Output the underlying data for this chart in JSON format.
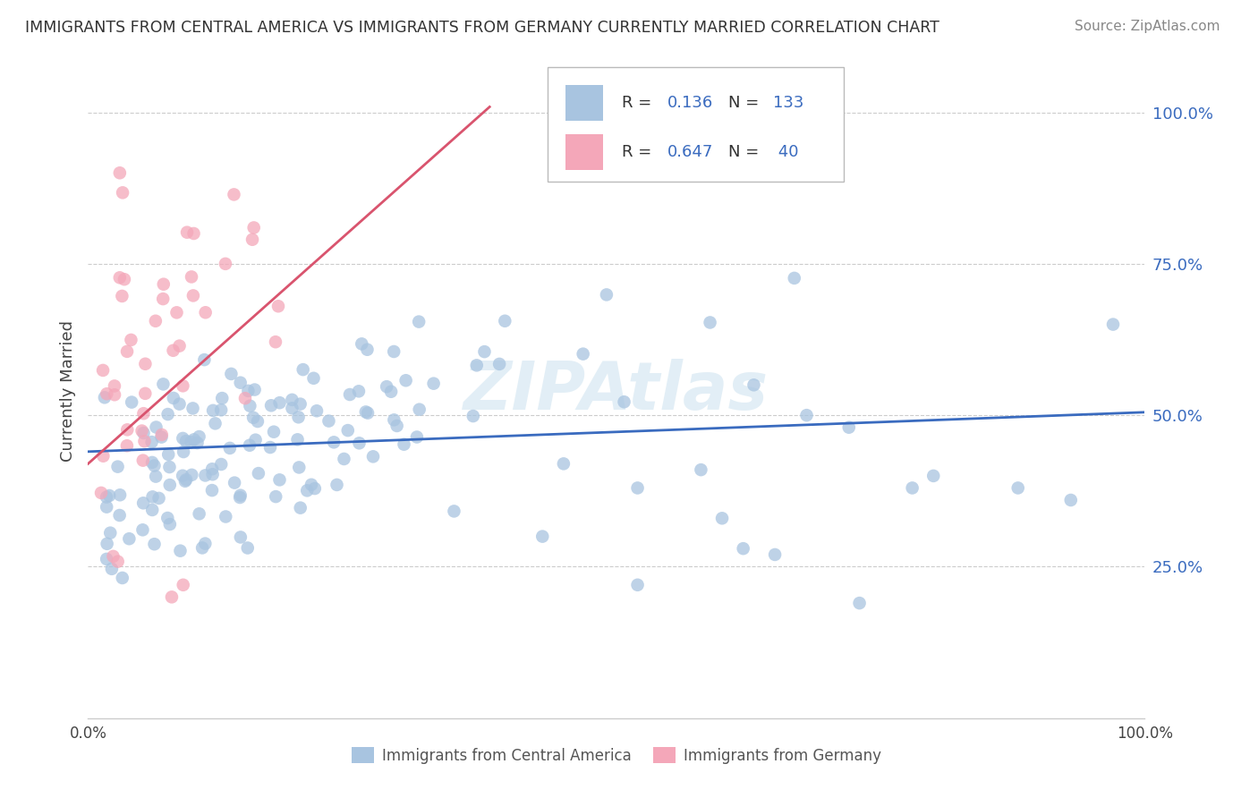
{
  "title": "IMMIGRANTS FROM CENTRAL AMERICA VS IMMIGRANTS FROM GERMANY CURRENTLY MARRIED CORRELATION CHART",
  "source": "Source: ZipAtlas.com",
  "ylabel": "Currently Married",
  "legend_blue_label": "Immigrants from Central America",
  "legend_pink_label": "Immigrants from Germany",
  "blue_color": "#a8c4e0",
  "blue_line_color": "#3a6bbf",
  "pink_color": "#f4a7b9",
  "pink_line_color": "#d9546e",
  "watermark": "ZIPAtlas",
  "background_color": "#ffffff",
  "grid_color": "#cccccc",
  "blue_R": 0.136,
  "blue_N": 133,
  "pink_R": 0.647,
  "pink_N": 40
}
